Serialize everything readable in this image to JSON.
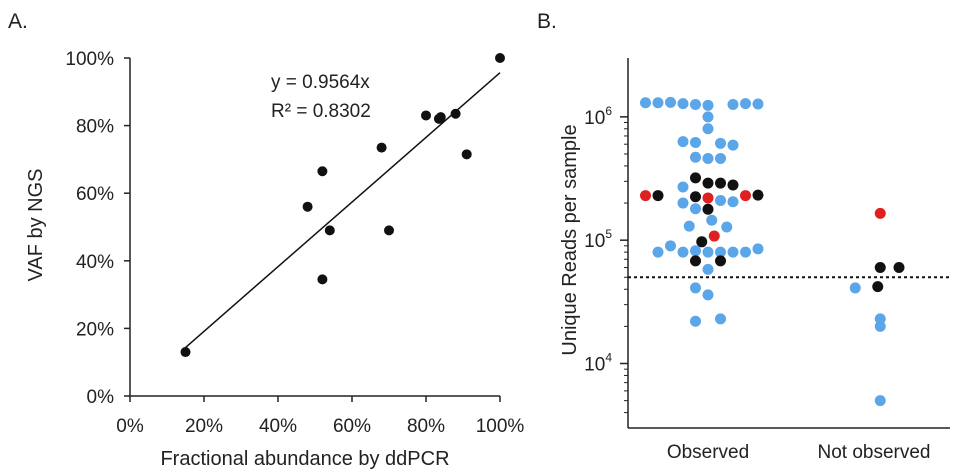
{
  "chart_data": [
    {
      "panel": "A.",
      "type": "scatter",
      "xlabel": "Fractional abundance by ddPCR",
      "ylabel": "VAF by NGS",
      "xlim": [
        0,
        100
      ],
      "ylim": [
        0,
        100
      ],
      "x_ticks": [
        "0%",
        "20%",
        "40%",
        "60%",
        "80%",
        "100%"
      ],
      "y_ticks": [
        "0%",
        "20%",
        "40%",
        "60%",
        "80%",
        "100%"
      ],
      "points": [
        {
          "x": 15,
          "y": 13
        },
        {
          "x": 48,
          "y": 56
        },
        {
          "x": 52,
          "y": 66.5
        },
        {
          "x": 52,
          "y": 34.5
        },
        {
          "x": 54,
          "y": 49
        },
        {
          "x": 68,
          "y": 73.5
        },
        {
          "x": 70,
          "y": 49
        },
        {
          "x": 80,
          "y": 83
        },
        {
          "x": 83.5,
          "y": 82
        },
        {
          "x": 84,
          "y": 82.5
        },
        {
          "x": 88,
          "y": 83.5
        },
        {
          "x": 91,
          "y": 71.5
        },
        {
          "x": 100,
          "y": 100
        }
      ],
      "trendline": {
        "slope": 0.9564,
        "x_range": [
          15,
          100
        ]
      },
      "equation": "y = 0.9564x",
      "r2_label": "R² = 0.8302",
      "grid": false
    },
    {
      "panel": "B.",
      "type": "scatter",
      "ylabel": "Unique Reads per sample",
      "yscale": "log",
      "ylim": [
        3000,
        3000000
      ],
      "y_ticks": [
        {
          "base": "10",
          "exp": "4",
          "value": 10000
        },
        {
          "base": "10",
          "exp": "5",
          "value": 100000
        },
        {
          "base": "10",
          "exp": "6",
          "value": 1000000
        }
      ],
      "categories": [
        "Observed",
        "Not observed"
      ],
      "threshold": 50000,
      "colors": {
        "blue": "#5aa6e8",
        "black": "#111111",
        "red": "#e02020"
      },
      "points": [
        {
          "c": 0,
          "o": -5,
          "y": 1300000,
          "color": "blue"
        },
        {
          "c": 0,
          "o": -4,
          "y": 1300000,
          "color": "blue"
        },
        {
          "c": 0,
          "o": -3,
          "y": 1310000,
          "color": "blue"
        },
        {
          "c": 0,
          "o": -2,
          "y": 1280000,
          "color": "blue"
        },
        {
          "c": 0,
          "o": -1,
          "y": 1260000,
          "color": "blue"
        },
        {
          "c": 0,
          "o": 0,
          "y": 1240000,
          "color": "blue"
        },
        {
          "c": 0,
          "o": 0,
          "y": 1000000,
          "color": "blue"
        },
        {
          "c": 0,
          "o": 0,
          "y": 800000,
          "color": "blue"
        },
        {
          "c": 0,
          "o": 2,
          "y": 1260000,
          "color": "blue"
        },
        {
          "c": 0,
          "o": 3,
          "y": 1280000,
          "color": "blue"
        },
        {
          "c": 0,
          "o": 4,
          "y": 1270000,
          "color": "blue"
        },
        {
          "c": 0,
          "o": -2,
          "y": 630000,
          "color": "blue"
        },
        {
          "c": 0,
          "o": -1,
          "y": 620000,
          "color": "blue"
        },
        {
          "c": 0,
          "o": 1,
          "y": 610000,
          "color": "blue"
        },
        {
          "c": 0,
          "o": 2,
          "y": 590000,
          "color": "blue"
        },
        {
          "c": 0,
          "o": -1,
          "y": 470000,
          "color": "blue"
        },
        {
          "c": 0,
          "o": 0,
          "y": 460000,
          "color": "blue"
        },
        {
          "c": 0,
          "o": 1,
          "y": 460000,
          "color": "blue"
        },
        {
          "c": 0,
          "o": -2,
          "y": 270000,
          "color": "blue"
        },
        {
          "c": 0,
          "o": -1,
          "y": 320000,
          "color": "black"
        },
        {
          "c": 0,
          "o": 0,
          "y": 290000,
          "color": "black"
        },
        {
          "c": 0,
          "o": 1,
          "y": 290000,
          "color": "black"
        },
        {
          "c": 0,
          "o": 2,
          "y": 280000,
          "color": "black"
        },
        {
          "c": 0,
          "o": -5,
          "y": 230000,
          "color": "red"
        },
        {
          "c": 0,
          "o": -4,
          "y": 230000,
          "color": "black"
        },
        {
          "c": 0,
          "o": -2,
          "y": 200000,
          "color": "blue"
        },
        {
          "c": 0,
          "o": -1,
          "y": 225000,
          "color": "black"
        },
        {
          "c": 0,
          "o": 0,
          "y": 220000,
          "color": "red"
        },
        {
          "c": 0,
          "o": 1,
          "y": 210000,
          "color": "blue"
        },
        {
          "c": 0,
          "o": 2,
          "y": 205000,
          "color": "blue"
        },
        {
          "c": 0,
          "o": 3,
          "y": 230000,
          "color": "red"
        },
        {
          "c": 0,
          "o": 4,
          "y": 232000,
          "color": "black"
        },
        {
          "c": 0,
          "o": -1,
          "y": 180000,
          "color": "blue"
        },
        {
          "c": 0,
          "o": 0,
          "y": 178000,
          "color": "black"
        },
        {
          "c": 0,
          "o": 0.3,
          "y": 145000,
          "color": "blue"
        },
        {
          "c": 0,
          "o": -1.5,
          "y": 130000,
          "color": "blue"
        },
        {
          "c": 0,
          "o": 1.5,
          "y": 128000,
          "color": "blue"
        },
        {
          "c": 0,
          "o": -0.5,
          "y": 97000,
          "color": "black"
        },
        {
          "c": 0,
          "o": 0.5,
          "y": 108000,
          "color": "red"
        },
        {
          "c": 0,
          "o": -4,
          "y": 80000,
          "color": "blue"
        },
        {
          "c": 0,
          "o": -3,
          "y": 90000,
          "color": "blue"
        },
        {
          "c": 0,
          "o": -2,
          "y": 80000,
          "color": "blue"
        },
        {
          "c": 0,
          "o": -1,
          "y": 82000,
          "color": "blue"
        },
        {
          "c": 0,
          "o": 0,
          "y": 80000,
          "color": "blue"
        },
        {
          "c": 0,
          "o": 1,
          "y": 80000,
          "color": "blue"
        },
        {
          "c": 0,
          "o": 2,
          "y": 80000,
          "color": "blue"
        },
        {
          "c": 0,
          "o": 3,
          "y": 80000,
          "color": "blue"
        },
        {
          "c": 0,
          "o": 4,
          "y": 85000,
          "color": "blue"
        },
        {
          "c": 0,
          "o": -1,
          "y": 68000,
          "color": "black"
        },
        {
          "c": 0,
          "o": 1,
          "y": 68000,
          "color": "black"
        },
        {
          "c": 0,
          "o": 0,
          "y": 58000,
          "color": "blue"
        },
        {
          "c": 0,
          "o": -1,
          "y": 41000,
          "color": "blue"
        },
        {
          "c": 0,
          "o": 0,
          "y": 36000,
          "color": "blue"
        },
        {
          "c": 0,
          "o": -1,
          "y": 22000,
          "color": "blue"
        },
        {
          "c": 0,
          "o": 1,
          "y": 23000,
          "color": "blue"
        },
        {
          "c": 1,
          "o": 0.5,
          "y": 165000,
          "color": "red"
        },
        {
          "c": 1,
          "o": 0.5,
          "y": 60000,
          "color": "black"
        },
        {
          "c": 1,
          "o": 2,
          "y": 60000,
          "color": "black"
        },
        {
          "c": 1,
          "o": -1.5,
          "y": 41000,
          "color": "blue"
        },
        {
          "c": 1,
          "o": 0.3,
          "y": 42000,
          "color": "black"
        },
        {
          "c": 1,
          "o": 0.5,
          "y": 23000,
          "color": "blue"
        },
        {
          "c": 1,
          "o": 0.5,
          "y": 20000,
          "color": "blue"
        },
        {
          "c": 1,
          "o": 0.5,
          "y": 5000,
          "color": "blue"
        }
      ]
    }
  ]
}
